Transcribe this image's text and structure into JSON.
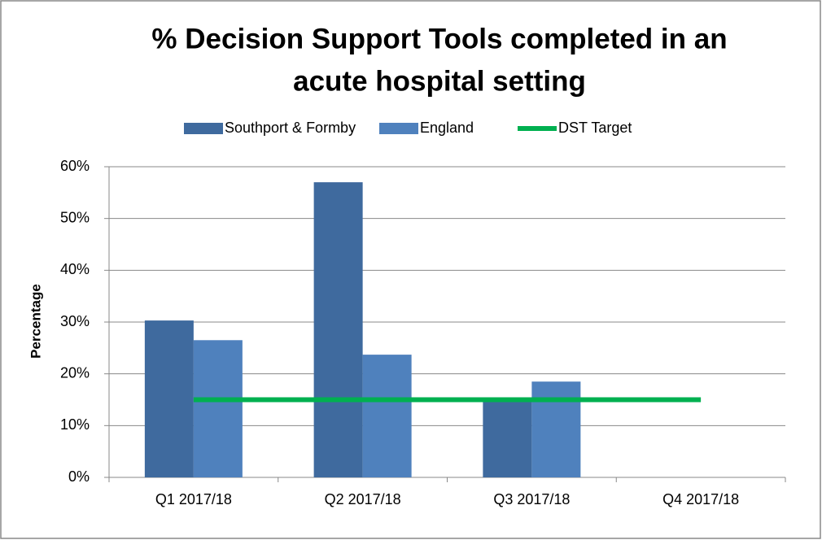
{
  "chart_data": {
    "type": "bar",
    "title": [
      "% Decision Support Tools completed in an",
      "acute hospital setting"
    ],
    "y_label": "Percentage",
    "categories": [
      "Q1 2017/18",
      "Q2 2017/18",
      "Q3 2017/18",
      "Q4 2017/18"
    ],
    "series": [
      {
        "name": "Southport & Formby",
        "color": "#3f6a9e",
        "values": [
          30.3,
          57,
          15,
          null
        ]
      },
      {
        "name": "England",
        "color": "#4f81bd",
        "values": [
          26.5,
          23.7,
          18.5,
          null
        ]
      },
      {
        "name": "DST Target",
        "type": "line",
        "color": "#00b050",
        "values": [
          15,
          15,
          15,
          15
        ]
      }
    ],
    "ylim": [
      0,
      60
    ],
    "yticks": [
      {
        "value": 0,
        "label": "0%"
      },
      {
        "value": 10,
        "label": "10%"
      },
      {
        "value": 20,
        "label": "20%"
      },
      {
        "value": 30,
        "label": "30%"
      },
      {
        "value": 40,
        "label": "40%"
      },
      {
        "value": 50,
        "label": "50%"
      },
      {
        "value": 60,
        "label": "60%"
      }
    ],
    "grid": true,
    "legend": "top"
  }
}
